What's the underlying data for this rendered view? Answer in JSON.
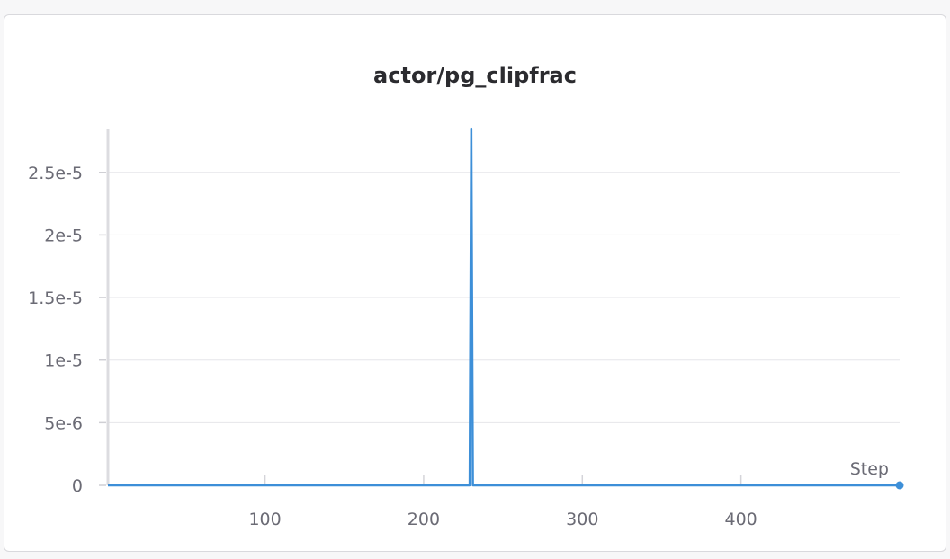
{
  "chart_data": {
    "type": "line",
    "title": "actor/pg_clipfrac",
    "xlabel": "Step",
    "ylabel": "",
    "xlim": [
      1,
      500
    ],
    "ylim": [
      0,
      2.85e-05
    ],
    "x_ticks": [
      100,
      200,
      300,
      400
    ],
    "x_tick_labels": [
      "100",
      "200",
      "300",
      "400"
    ],
    "y_ticks": [
      0,
      5e-06,
      1e-05,
      1.5e-05,
      2e-05,
      2.5e-05
    ],
    "y_tick_labels": [
      "0",
      "5e-6",
      "1e-5",
      "1.5e-5",
      "2e-5",
      "2.5e-5"
    ],
    "grid": true,
    "series": [
      {
        "x": [
          1,
          229,
          230,
          231,
          232,
          500
        ],
        "y": [
          0,
          0,
          2.85e-05,
          0,
          0,
          0
        ],
        "color": "#3d8fd8"
      }
    ]
  }
}
